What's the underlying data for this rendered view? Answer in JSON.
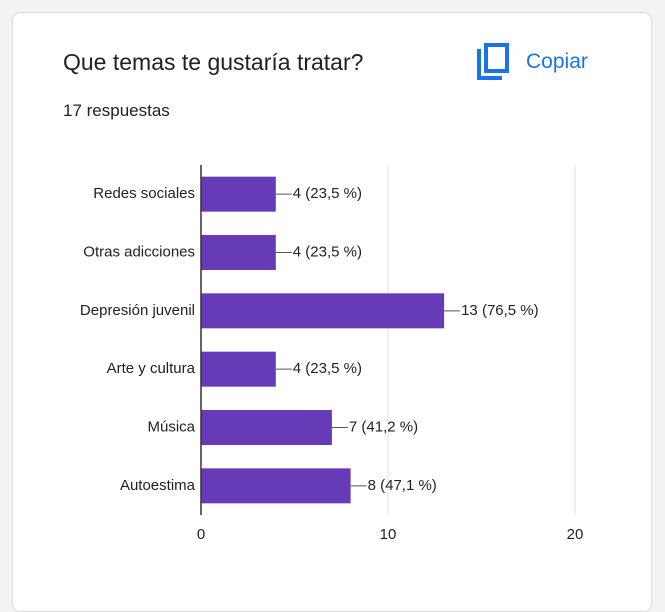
{
  "title": "Que temas te gustaría tratar?",
  "subtitle": "17 respuestas",
  "copy_button": "Copiar",
  "chart_data": {
    "type": "bar",
    "orientation": "horizontal",
    "categories": [
      "Redes sociales",
      "Otras adicciones",
      "Depresión juvenil",
      "Arte y cultura",
      "Música",
      "Autoestima"
    ],
    "values": [
      4,
      4,
      13,
      4,
      7,
      8
    ],
    "value_labels": [
      "4 (23,5 %)",
      "4 (23,5 %)",
      "13 (76,5 %)",
      "4 (23,5 %)",
      "7 (41,2 %)",
      "8 (47,1 %)"
    ],
    "color": "#673ab7",
    "xlim": [
      0,
      20
    ],
    "xticks": [
      0,
      10,
      20
    ],
    "grid": true
  }
}
